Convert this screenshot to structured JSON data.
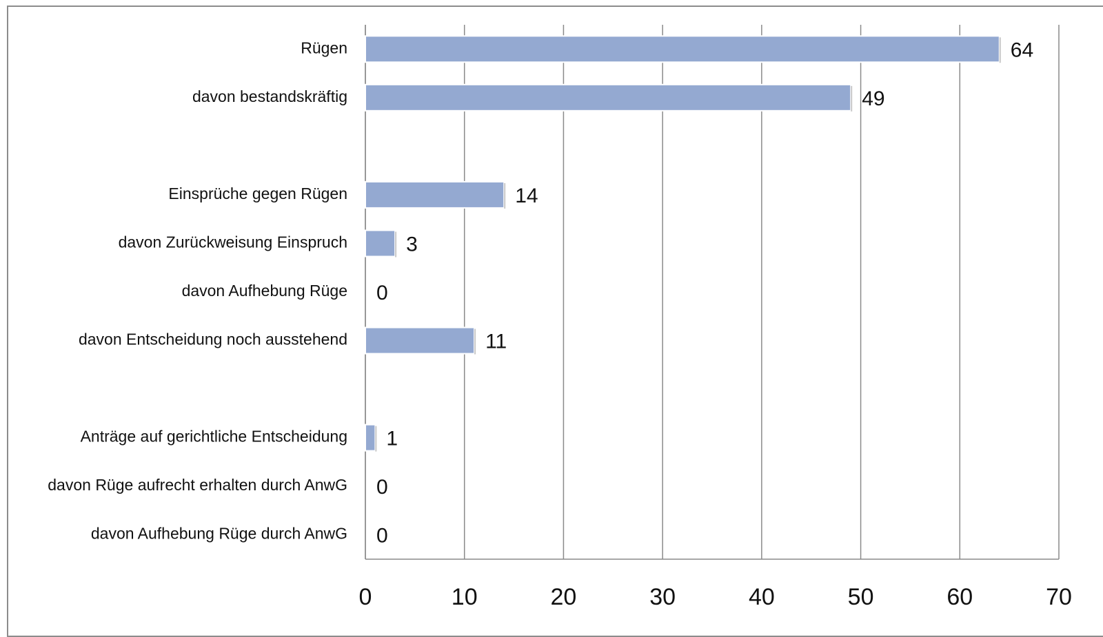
{
  "chart_data": {
    "type": "bar",
    "orientation": "horizontal",
    "title": "",
    "xlabel": "",
    "ylabel": "",
    "categories": [
      "Rügen",
      "davon bestandskräftig",
      "",
      "Einsprüche gegen Rügen",
      "davon Zurückweisung Einspruch",
      "davon Aufhebung Rüge",
      "davon Entscheidung noch ausstehend",
      "",
      "Anträge auf gerichtliche Entscheidung",
      "davon Rüge aufrecht erhalten durch AnwG",
      "davon Aufhebung Rüge durch AnwG"
    ],
    "values": [
      64,
      49,
      null,
      14,
      3,
      0,
      11,
      null,
      1,
      0,
      0
    ],
    "value_labels": [
      "64",
      "49",
      "",
      "14",
      "3",
      "0",
      "11",
      "",
      "1",
      "0",
      "0"
    ],
    "xlim": [
      0,
      70
    ],
    "xticks": [
      0,
      10,
      20,
      30,
      40,
      50,
      60,
      70
    ],
    "xtick_labels": [
      "0",
      "10",
      "20",
      "30",
      "40",
      "50",
      "60",
      "70"
    ],
    "grid": "vertical",
    "legend": "none",
    "colors": {
      "bar": "#94a9d1",
      "bar_edge": "#ffffff",
      "grid": "#8a8a8a",
      "text": "#111111"
    }
  }
}
